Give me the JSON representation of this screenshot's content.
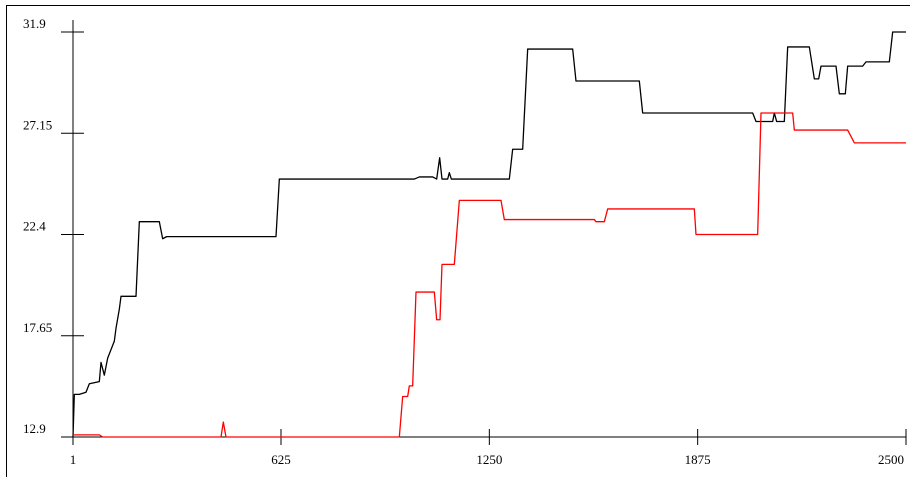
{
  "chart_data": {
    "type": "line",
    "title": "",
    "xlabel": "",
    "ylabel": "",
    "xlim": [
      1,
      2500
    ],
    "ylim": [
      12.9,
      31.9
    ],
    "x_ticks": [
      1,
      625,
      1250,
      1875,
      2500
    ],
    "x_tick_labels": [
      "1",
      "625",
      "1250",
      "1875",
      "2500"
    ],
    "y_ticks": [
      12.9,
      17.65,
      22.4,
      27.15,
      31.9
    ],
    "y_tick_labels": [
      "12.9",
      "17.65",
      "22.4",
      "27.15",
      "31.9"
    ],
    "grid": false,
    "legend": "none",
    "series": [
      {
        "color": "#000000",
        "points": [
          [
            1,
            12.9
          ],
          [
            5,
            14.9
          ],
          [
            20,
            14.9
          ],
          [
            40,
            15.0
          ],
          [
            50,
            15.4
          ],
          [
            80,
            15.5
          ],
          [
            85,
            16.4
          ],
          [
            95,
            15.8
          ],
          [
            105,
            16.6
          ],
          [
            115,
            17.0
          ],
          [
            125,
            17.4
          ],
          [
            130,
            18.0
          ],
          [
            140,
            18.9
          ],
          [
            145,
            19.5
          ],
          [
            190,
            19.5
          ],
          [
            200,
            23.0
          ],
          [
            260,
            23.0
          ],
          [
            270,
            22.2
          ],
          [
            282,
            22.3
          ],
          [
            610,
            22.3
          ],
          [
            620,
            25.0
          ],
          [
            1025,
            25.0
          ],
          [
            1040,
            25.1
          ],
          [
            1080,
            25.1
          ],
          [
            1092,
            25.0
          ],
          [
            1101,
            26.0
          ],
          [
            1108,
            25.0
          ],
          [
            1125,
            25.0
          ],
          [
            1130,
            25.3
          ],
          [
            1136,
            25.0
          ],
          [
            1310,
            25.0
          ],
          [
            1320,
            26.4
          ],
          [
            1350,
            26.4
          ],
          [
            1365,
            31.1
          ],
          [
            1500,
            31.1
          ],
          [
            1510,
            29.6
          ],
          [
            1700,
            29.6
          ],
          [
            1710,
            28.1
          ],
          [
            2040,
            28.1
          ],
          [
            2050,
            27.7
          ],
          [
            2100,
            27.7
          ],
          [
            2105,
            28.1
          ],
          [
            2112,
            27.7
          ],
          [
            2135,
            27.7
          ],
          [
            2145,
            31.2
          ],
          [
            2210,
            31.2
          ],
          [
            2225,
            29.7
          ],
          [
            2238,
            29.7
          ],
          [
            2245,
            30.3
          ],
          [
            2290,
            30.3
          ],
          [
            2300,
            29.0
          ],
          [
            2318,
            29.0
          ],
          [
            2325,
            30.3
          ],
          [
            2370,
            30.3
          ],
          [
            2380,
            30.5
          ],
          [
            2450,
            30.5
          ],
          [
            2460,
            31.9
          ],
          [
            2500,
            31.9
          ]
        ]
      },
      {
        "color": "#ff0000",
        "points": [
          [
            1,
            13.0
          ],
          [
            80,
            13.0
          ],
          [
            90,
            12.9
          ],
          [
            445,
            12.9
          ],
          [
            452,
            13.6
          ],
          [
            460,
            12.9
          ],
          [
            980,
            12.9
          ],
          [
            990,
            14.8
          ],
          [
            1005,
            14.8
          ],
          [
            1010,
            15.3
          ],
          [
            1020,
            15.3
          ],
          [
            1030,
            19.7
          ],
          [
            1085,
            19.7
          ],
          [
            1092,
            18.4
          ],
          [
            1102,
            18.4
          ],
          [
            1108,
            21.0
          ],
          [
            1145,
            21.0
          ],
          [
            1160,
            24.0
          ],
          [
            1285,
            24.0
          ],
          [
            1295,
            23.1
          ],
          [
            1565,
            23.1
          ],
          [
            1570,
            23.0
          ],
          [
            1595,
            23.0
          ],
          [
            1605,
            23.6
          ],
          [
            1865,
            23.6
          ],
          [
            1870,
            22.4
          ],
          [
            2055,
            22.4
          ],
          [
            2065,
            28.1
          ],
          [
            2160,
            28.1
          ],
          [
            2165,
            27.3
          ],
          [
            2325,
            27.3
          ],
          [
            2345,
            26.7
          ],
          [
            2500,
            26.7
          ]
        ]
      }
    ]
  }
}
